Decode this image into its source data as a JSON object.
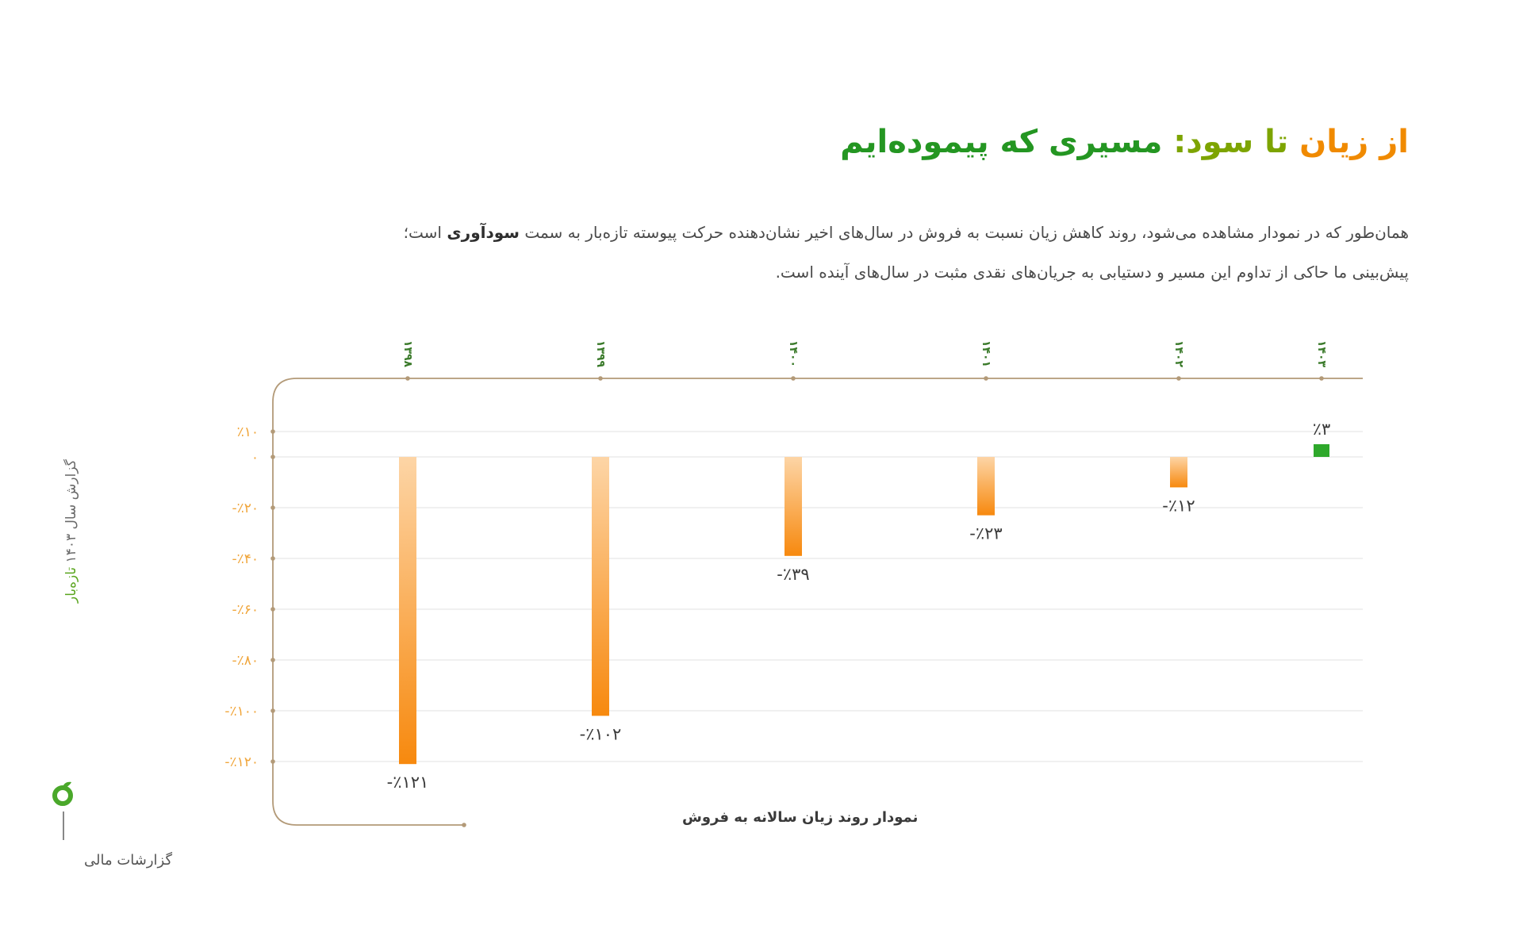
{
  "header": {
    "title_part1": "از زیان",
    "title_part2": "تا سود:",
    "title_part3": "مسیری که پیموده‌ایم"
  },
  "description": {
    "line1_before": "همان‌طور که در نمودار مشاهده می‌شود، روند کاهش زیان نسبت به فروش در سال‌های اخیر نشان‌دهنده حرکت پیوسته تازه‌بار به سمت",
    "line1_bold": "سودآوری",
    "line1_after": "است؛",
    "line2": "پیش‌بینی ما حاکی از تداوم این مسیر و دستیابی به جریان‌های نقدی مثبت در سال‌های آینده است."
  },
  "sidebar": {
    "report_label_before": "گزارش سال ۱۴۰۳",
    "brand": "تازه‌بار",
    "section": "گزارشات مالی"
  },
  "colors": {
    "negative_top": "#fdd5a6",
    "negative_bottom": "#f7890e",
    "positive": "#2ea82b",
    "axis": "#b39a78",
    "tick_text": "#f0a53a",
    "year_text": "#3a7a2a",
    "grid": "#ececec"
  },
  "chart_data": {
    "type": "bar",
    "title": "",
    "caption": "نمودار روند زیان سالانه به فروش",
    "categories": [
      "۱۳۹۸",
      "۱۳۹۹",
      "۱۴۰۰",
      "۱۴۰۱",
      "۱۴۰۲",
      "۱۴۰۳"
    ],
    "values": [
      -121,
      -102,
      -39,
      -23,
      -12,
      3
    ],
    "data_labels": [
      "-٪۱۲۱",
      "-٪۱۰۲",
      "-٪۳۹",
      "-٪۲۳",
      "-٪۱۲",
      "٪۳"
    ],
    "y_ticks": [
      10,
      0,
      -20,
      -40,
      -60,
      -80,
      -100,
      -120
    ],
    "y_tick_labels": [
      "٪۱۰",
      "۰",
      "-٪۲۰",
      "-٪۴۰",
      "-٪۶۰",
      "-٪۸۰",
      "-٪۱۰۰",
      "-٪۱۲۰"
    ],
    "ylim": [
      -140,
      20
    ],
    "x_axis_position": "top",
    "grid": true
  }
}
